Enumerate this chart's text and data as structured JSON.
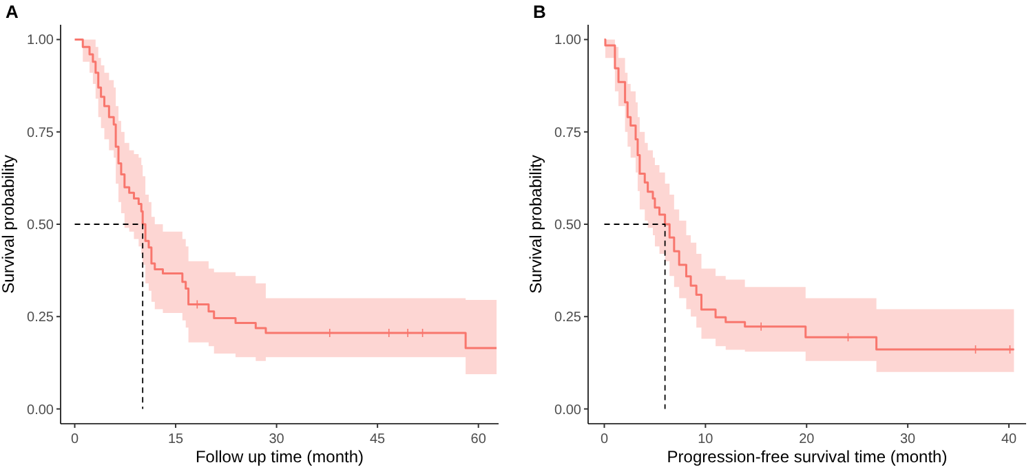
{
  "chart_data": [
    {
      "type": "step",
      "title": "A",
      "xlabel": "Follow up time (month)",
      "ylabel": "Survival probability",
      "xlim": [
        -2.1,
        63
      ],
      "ylim": [
        -0.04,
        1.04
      ],
      "xticks": [
        0,
        15,
        30,
        45,
        60
      ],
      "yticks": [
        {
          "value": 0,
          "label": "0.00"
        },
        {
          "value": 0.25,
          "label": "0.25"
        },
        {
          "value": 0.5,
          "label": "0.50"
        },
        {
          "value": 0.75,
          "label": "0.75"
        },
        {
          "value": 1,
          "label": "1.00"
        }
      ],
      "grid": false,
      "series": [
        {
          "color": "#f8766d",
          "x": [
            0,
            1.2,
            2.2,
            2.7,
            3.1,
            3.5,
            3.9,
            4.4,
            5.1,
            5.8,
            6.1,
            6.5,
            6.9,
            7.4,
            8.1,
            8.8,
            9.5,
            9.9,
            10.1,
            10.5,
            11.0,
            11.4,
            11.9,
            13.1,
            16.0,
            16.5,
            16.9,
            19.9,
            20.7,
            23.9,
            26.9,
            28.4,
            58.1,
            62.7
          ],
          "values": [
            1,
            0.98,
            0.96,
            0.94,
            0.91,
            0.87,
            0.845,
            0.82,
            0.79,
            0.77,
            0.71,
            0.665,
            0.635,
            0.6,
            0.585,
            0.57,
            0.555,
            0.535,
            0.5,
            0.455,
            0.437,
            0.394,
            0.378,
            0.367,
            0.344,
            0.326,
            0.283,
            0.264,
            0.246,
            0.233,
            0.219,
            0.206,
            0.165,
            0.165
          ],
          "upper": [
            1,
            1,
            1,
            1,
            0.98,
            0.95,
            0.93,
            0.91,
            0.89,
            0.87,
            0.82,
            0.78,
            0.75,
            0.72,
            0.7,
            0.69,
            0.68,
            0.66,
            0.63,
            0.58,
            0.56,
            0.52,
            0.5,
            0.48,
            0.46,
            0.44,
            0.4,
            0.38,
            0.37,
            0.36,
            0.34,
            0.3,
            0.295,
            0.295
          ],
          "lower": [
            1,
            0.94,
            0.91,
            0.88,
            0.84,
            0.79,
            0.76,
            0.73,
            0.7,
            0.68,
            0.61,
            0.56,
            0.53,
            0.49,
            0.48,
            0.46,
            0.44,
            0.42,
            0.39,
            0.34,
            0.32,
            0.29,
            0.27,
            0.26,
            0.24,
            0.22,
            0.18,
            0.17,
            0.15,
            0.14,
            0.13,
            0.14,
            0.094,
            0.094
          ]
        },
        {
          "type": "scatter",
          "marker": "cross",
          "color": "#f8766d",
          "x": [
            18.2,
            37.9,
            46.7,
            49.5,
            51.7
          ],
          "values": [
            0.283,
            0.206,
            0.206,
            0.206,
            0.206
          ]
        },
        {
          "type": "line",
          "line_style": "dashed",
          "color": "#000000",
          "x": [
            0,
            10.1,
            10.1
          ],
          "values": [
            0.5,
            0.5,
            0
          ]
        }
      ]
    },
    {
      "type": "step",
      "title": "B",
      "xlabel": "Progression-free survival time (month)",
      "ylabel": "Survival probability",
      "xlim": [
        -1.6,
        41.7
      ],
      "ylim": [
        -0.04,
        1.04
      ],
      "xticks": [
        0,
        10,
        20,
        30,
        40
      ],
      "yticks": [
        {
          "value": 0,
          "label": "0.00"
        },
        {
          "value": 0.25,
          "label": "0.25"
        },
        {
          "value": 0.5,
          "label": "0.50"
        },
        {
          "value": 0.75,
          "label": "0.75"
        },
        {
          "value": 1,
          "label": "1.00"
        }
      ],
      "grid": false,
      "series": [
        {
          "color": "#f8766d",
          "x": [
            0,
            0.1,
            1.05,
            1.4,
            2.05,
            2.3,
            2.6,
            3.1,
            3.3,
            3.5,
            4.0,
            4.3,
            4.8,
            5.0,
            5.45,
            6.0,
            6.45,
            6.9,
            7.4,
            8.1,
            8.55,
            9.1,
            9.6,
            11.0,
            12.0,
            13.9,
            19.9,
            26.9,
            40.5
          ],
          "values": [
            1,
            0.984,
            0.922,
            0.885,
            0.83,
            0.79,
            0.767,
            0.73,
            0.687,
            0.637,
            0.613,
            0.588,
            0.57,
            0.545,
            0.526,
            0.5,
            0.464,
            0.427,
            0.39,
            0.359,
            0.334,
            0.309,
            0.269,
            0.248,
            0.235,
            0.223,
            0.194,
            0.161,
            0.161
          ],
          "upper": [
            1,
            1,
            0.98,
            0.95,
            0.91,
            0.88,
            0.86,
            0.83,
            0.79,
            0.75,
            0.72,
            0.7,
            0.68,
            0.66,
            0.64,
            0.61,
            0.58,
            0.54,
            0.51,
            0.47,
            0.45,
            0.42,
            0.38,
            0.36,
            0.35,
            0.33,
            0.3,
            0.27,
            0.27
          ],
          "lower": [
            1,
            0.95,
            0.86,
            0.82,
            0.75,
            0.71,
            0.68,
            0.64,
            0.59,
            0.54,
            0.51,
            0.49,
            0.47,
            0.44,
            0.42,
            0.4,
            0.36,
            0.33,
            0.3,
            0.27,
            0.25,
            0.22,
            0.19,
            0.17,
            0.16,
            0.155,
            0.13,
            0.1,
            0.1
          ]
        },
        {
          "type": "scatter",
          "marker": "cross",
          "color": "#f8766d",
          "x": [
            15.5,
            24.1,
            36.7,
            40.1
          ],
          "values": [
            0.223,
            0.194,
            0.161,
            0.161
          ]
        },
        {
          "type": "line",
          "line_style": "dashed",
          "color": "#000000",
          "x": [
            0,
            6.0,
            6.0
          ],
          "values": [
            0.5,
            0.5,
            0
          ]
        }
      ]
    }
  ]
}
